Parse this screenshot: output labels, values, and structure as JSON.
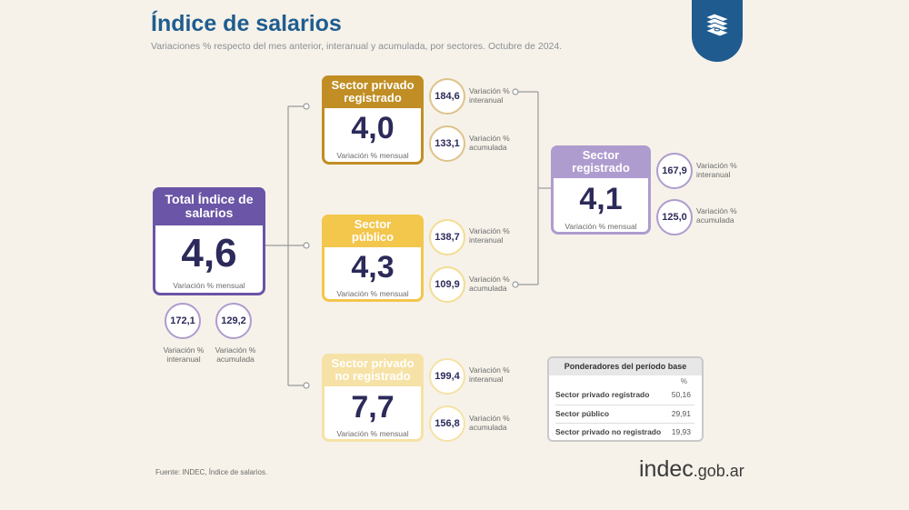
{
  "title": "Índice de salarios",
  "subtitle": "Variaciones % respecto del mes anterior, interanual y acumulada, por sectores. Octubre de 2024.",
  "colors": {
    "purple": "#6a55a6",
    "purple_light": "#ae9ccf",
    "gold": "#c08e24",
    "gold_circle": "#dfc28a",
    "yellow": "#f3c64c",
    "yellow_light": "#f3dd93",
    "pale": "#f6e2a6",
    "title_blue": "#1f5d8f"
  },
  "total": {
    "title": "Total Índice de salarios",
    "value": "4,6",
    "caption": "Variación % mensual",
    "interanual": "172,1",
    "acumulada": "129,2",
    "interanual_label": "Variación % interanual",
    "acumulada_label": "Variación % acumulada"
  },
  "privado_registrado": {
    "title": "Sector privado registrado",
    "value": "4,0",
    "caption": "Variación % mensual",
    "interanual": "184,6",
    "acumulada": "133,1",
    "interanual_label": "Variación % interanual",
    "acumulada_label": "Variación % acumulada"
  },
  "publico": {
    "title": "Sector público",
    "value": "4,3",
    "caption": "Variación % mensual",
    "interanual": "138,7",
    "acumulada": "109,9",
    "interanual_label": "Variación % interanual",
    "acumulada_label": "Variación % acumulada"
  },
  "no_registrado": {
    "title": "Sector privado no registrado",
    "value": "7,7",
    "caption": "Variación % mensual",
    "interanual": "199,4",
    "acumulada": "156,8",
    "interanual_label": "Variación % interanual",
    "acumulada_label": "Variación % acumulada"
  },
  "registrado": {
    "title": "Sector registrado",
    "value": "4,1",
    "caption": "Variación % mensual",
    "interanual": "167,9",
    "acumulada": "125,0",
    "interanual_label": "Variación % interanual",
    "acumulada_label": "Variación % acumulada"
  },
  "ponderadores": {
    "title": "Ponderadores del período base",
    "unit": "%",
    "rows": [
      {
        "label": "Sector privado registrado",
        "value": "50,16"
      },
      {
        "label": "Sector público",
        "value": "29,91"
      },
      {
        "label": "Sector privado no registrado",
        "value": "19,93"
      }
    ]
  },
  "source": "Fuente: INDEC, Índice de salarios.",
  "logo": {
    "main": "indec",
    "domain": ".gob.ar"
  },
  "icon": "money-icon"
}
